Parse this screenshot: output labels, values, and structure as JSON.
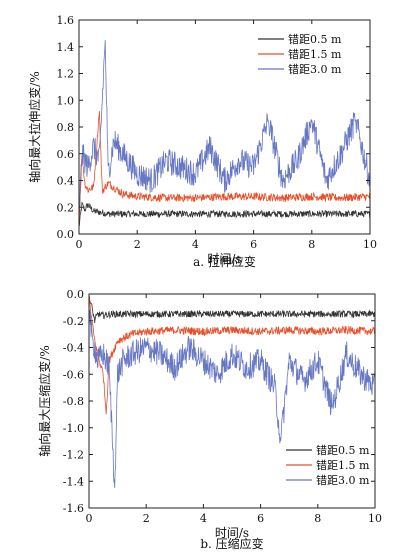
{
  "charts": [
    {
      "id": "a",
      "caption": "a. 拉伸应变",
      "chart_data": {
        "type": "line",
        "xlabel": "时间/s",
        "ylabel": "轴向最大拉伸应变/%",
        "xlim": [
          0,
          10
        ],
        "ylim": [
          0,
          1.6
        ],
        "xticks": [
          0,
          2,
          4,
          6,
          8,
          10
        ],
        "yticks": [
          0.0,
          0.2,
          0.4,
          0.6,
          0.8,
          1.0,
          1.2,
          1.4,
          1.6
        ],
        "grid": false,
        "legend_position": "top-right",
        "series": [
          {
            "name": "错距0.5 m",
            "color": "#333333",
            "x": [
              0.0,
              0.1,
              0.2,
              0.3,
              0.5,
              0.8,
              1.0,
              1.5,
              2,
              3,
              4,
              5,
              6,
              7,
              8,
              9,
              10
            ],
            "y": [
              0.05,
              0.22,
              0.18,
              0.22,
              0.17,
              0.16,
              0.15,
              0.15,
              0.15,
              0.15,
              0.15,
              0.15,
              0.15,
              0.15,
              0.15,
              0.15,
              0.15
            ]
          },
          {
            "name": "错距1.5 m",
            "color": "#e8502a",
            "x": [
              0.0,
              0.1,
              0.2,
              0.3,
              0.5,
              0.7,
              0.8,
              1.0,
              1.5,
              2,
              3,
              4,
              5,
              6,
              7,
              8,
              9,
              10
            ],
            "y": [
              0.05,
              0.6,
              0.38,
              0.33,
              0.35,
              0.92,
              0.32,
              0.38,
              0.3,
              0.28,
              0.27,
              0.27,
              0.28,
              0.28,
              0.27,
              0.28,
              0.27,
              0.28
            ]
          },
          {
            "name": "错距3.0 m",
            "color": "#6677c4",
            "x": [
              0.0,
              0.1,
              0.2,
              0.3,
              0.5,
              0.7,
              0.9,
              1.0,
              1.2,
              1.5,
              2.0,
              2.5,
              3.0,
              3.5,
              4.0,
              4.5,
              5.0,
              5.5,
              6.0,
              6.5,
              7.0,
              7.5,
              8.0,
              8.5,
              9.0,
              9.5,
              10.0
            ],
            "y": [
              0.1,
              0.6,
              0.55,
              0.5,
              0.65,
              0.55,
              1.45,
              0.45,
              0.7,
              0.6,
              0.45,
              0.4,
              0.55,
              0.5,
              0.45,
              0.65,
              0.4,
              0.55,
              0.5,
              0.85,
              0.4,
              0.55,
              0.85,
              0.4,
              0.6,
              0.85,
              0.4
            ]
          }
        ]
      }
    },
    {
      "id": "b",
      "caption": "b. 压缩应变",
      "chart_data": {
        "type": "line",
        "xlabel": "时间/s",
        "ylabel": "轴向最大压缩应变/%",
        "xlim": [
          0,
          10
        ],
        "ylim": [
          -1.6,
          0
        ],
        "xticks": [
          0,
          2,
          4,
          6,
          8,
          10
        ],
        "yticks": [
          0.0,
          -0.2,
          -0.4,
          -0.6,
          -0.8,
          -1.0,
          -1.2,
          -1.4,
          -1.6
        ],
        "grid": false,
        "legend_position": "bottom-right",
        "series": [
          {
            "name": "错距0.5 m",
            "color": "#333333",
            "x": [
              0.0,
              0.1,
              0.2,
              0.3,
              0.5,
              0.8,
              1.0,
              1.5,
              2,
              3,
              4,
              5,
              6,
              7,
              8,
              9,
              10
            ],
            "y": [
              -0.02,
              -0.1,
              -0.2,
              -0.15,
              -0.16,
              -0.15,
              -0.15,
              -0.15,
              -0.15,
              -0.15,
              -0.15,
              -0.15,
              -0.15,
              -0.15,
              -0.15,
              -0.15,
              -0.15
            ]
          },
          {
            "name": "错距1.5 m",
            "color": "#e8502a",
            "x": [
              0.0,
              0.1,
              0.2,
              0.3,
              0.5,
              0.6,
              0.7,
              0.9,
              1.0,
              1.3,
              1.5,
              2,
              3,
              4,
              5,
              6,
              7,
              8,
              9,
              10
            ],
            "y": [
              -0.02,
              -0.2,
              -0.35,
              -0.45,
              -0.6,
              -0.9,
              -0.5,
              -0.4,
              -0.35,
              -0.32,
              -0.3,
              -0.28,
              -0.27,
              -0.28,
              -0.27,
              -0.28,
              -0.27,
              -0.28,
              -0.27,
              -0.28
            ]
          },
          {
            "name": "错距3.0 m",
            "color": "#6677c4",
            "x": [
              0.0,
              0.1,
              0.2,
              0.3,
              0.5,
              0.7,
              0.9,
              1.0,
              1.2,
              1.5,
              2.0,
              2.5,
              3.0,
              3.5,
              4.0,
              4.5,
              5.0,
              5.5,
              6.0,
              6.5,
              6.7,
              7.0,
              7.5,
              8.0,
              8.5,
              9.0,
              9.5,
              10.0
            ],
            "y": [
              -0.05,
              -0.35,
              -0.4,
              -0.5,
              -0.45,
              -0.55,
              -1.45,
              -0.6,
              -0.5,
              -0.45,
              -0.4,
              -0.45,
              -0.55,
              -0.4,
              -0.5,
              -0.6,
              -0.45,
              -0.55,
              -0.5,
              -0.7,
              -1.1,
              -0.5,
              -0.65,
              -0.5,
              -0.85,
              -0.45,
              -0.6,
              -0.7
            ]
          }
        ]
      }
    }
  ]
}
